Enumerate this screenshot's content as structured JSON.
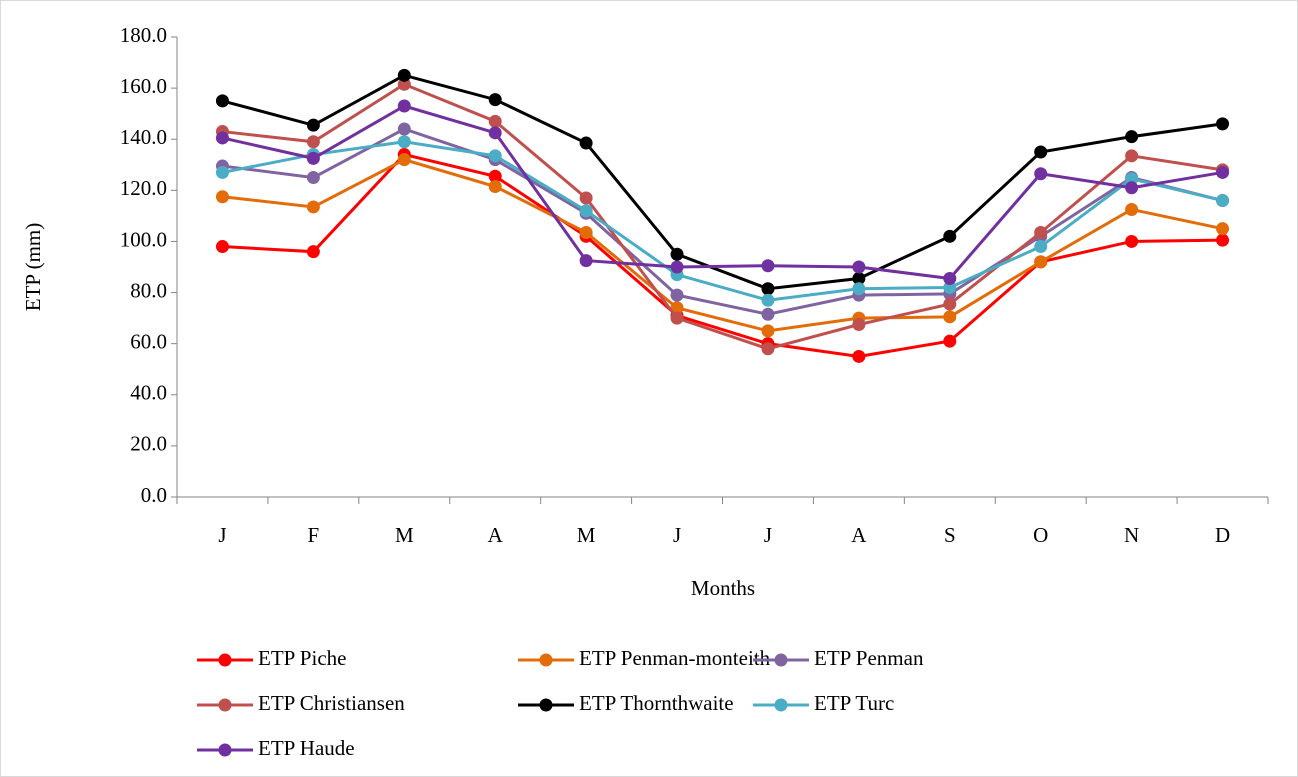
{
  "chart_data": {
    "type": "line",
    "x_label": "Months",
    "y_label": "ETP (mm)",
    "categories": [
      "J",
      "F",
      "M",
      "A",
      "M",
      "J",
      "J",
      "A",
      "S",
      "O",
      "N",
      "D"
    ],
    "ylim": [
      0,
      180
    ],
    "yticks": [
      {
        "value": 0,
        "label": "0.0"
      },
      {
        "value": 20,
        "label": "20.0"
      },
      {
        "value": 40,
        "label": "40.0"
      },
      {
        "value": 60,
        "label": "60.0"
      },
      {
        "value": 80,
        "label": "80.0"
      },
      {
        "value": 100,
        "label": "100.0"
      },
      {
        "value": 120,
        "label": "120.0"
      },
      {
        "value": 140,
        "label": "140.0"
      },
      {
        "value": 160,
        "label": "160.0"
      },
      {
        "value": 180,
        "label": "180.0"
      }
    ],
    "series": [
      {
        "name": "ETP Piche",
        "color": "#ff0000",
        "values": [
          98,
          96,
          134,
          125.5,
          102,
          71,
          60,
          55,
          61,
          92,
          100,
          100.5
        ]
      },
      {
        "name": "ETP Penman-monteith",
        "color": "#e36c09",
        "values": [
          117.5,
          113.5,
          132,
          121.5,
          103.5,
          74,
          65,
          70,
          70.5,
          92,
          112.5,
          105
        ]
      },
      {
        "name": "ETP Penman",
        "color": "#8064a2",
        "values": [
          129.5,
          125,
          144,
          132,
          111,
          79,
          71.5,
          79,
          79.5,
          102,
          125,
          116
        ]
      },
      {
        "name": "ETP Christiansen",
        "color": "#c0504d",
        "values": [
          143,
          139,
          161.5,
          147,
          117,
          70,
          58,
          67.5,
          75.5,
          103.5,
          133.5,
          128
        ]
      },
      {
        "name": "ETP Thornthwaite",
        "color": "#000000",
        "values": [
          155,
          145.5,
          165,
          155.5,
          138.5,
          95,
          81.5,
          85.5,
          102,
          135,
          141,
          146
        ]
      },
      {
        "name": "ETP Turc",
        "color": "#4bacc6",
        "values": [
          127,
          134,
          139,
          133.5,
          112,
          87,
          77,
          81.5,
          82,
          98,
          124.5,
          116
        ]
      },
      {
        "name": "ETP Haude",
        "color": "#7030a0",
        "values": [
          140.5,
          132.5,
          153,
          142.5,
          92.5,
          90,
          90.5,
          90,
          85.5,
          126.5,
          121,
          127
        ]
      }
    ]
  }
}
